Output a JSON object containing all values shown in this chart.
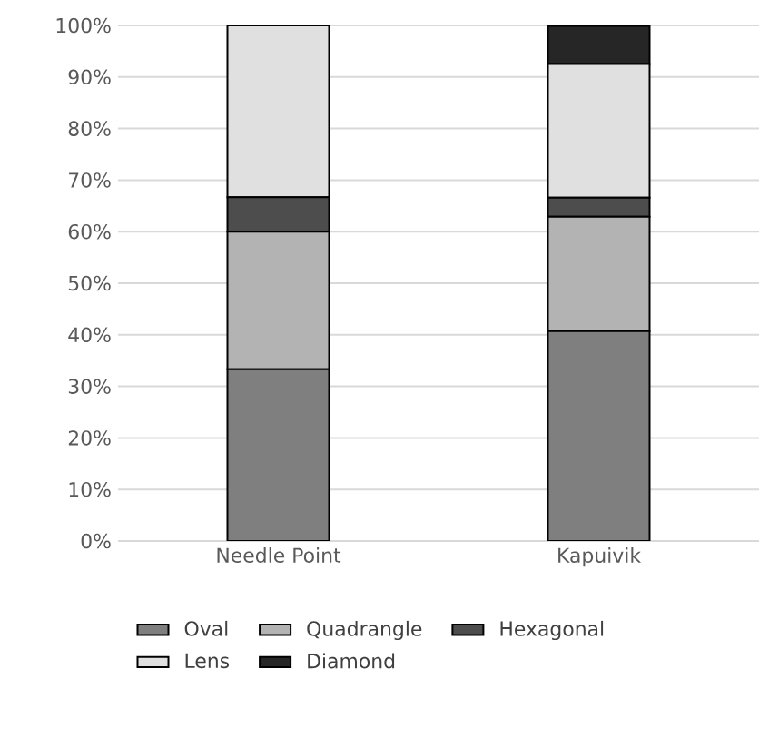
{
  "chart_data": {
    "type": "bar",
    "stacked": true,
    "categories": [
      "Needle Point",
      "Kapuivik"
    ],
    "series": [
      {
        "name": "Oval",
        "color": "#7f7f7f",
        "values": [
          33.3,
          40.7
        ]
      },
      {
        "name": "Quadrangle",
        "color": "#b3b3b3",
        "values": [
          26.7,
          22.2
        ]
      },
      {
        "name": "Hexagonal",
        "color": "#4d4d4d",
        "values": [
          6.7,
          3.7
        ]
      },
      {
        "name": "Lens",
        "color": "#e0e0e0",
        "values": [
          33.3,
          25.9
        ]
      },
      {
        "name": "Diamond",
        "color": "#262626",
        "values": [
          0,
          7.4
        ]
      }
    ],
    "ylim": [
      0,
      100
    ],
    "yticks": [
      {
        "value": 0,
        "label": "0%"
      },
      {
        "value": 10,
        "label": "10%"
      },
      {
        "value": 20,
        "label": "20%"
      },
      {
        "value": 30,
        "label": "30%"
      },
      {
        "value": 40,
        "label": "40%"
      },
      {
        "value": 50,
        "label": "50%"
      },
      {
        "value": 60,
        "label": "60%"
      },
      {
        "value": 70,
        "label": "70%"
      },
      {
        "value": 80,
        "label": "80%"
      },
      {
        "value": 90,
        "label": "90%"
      },
      {
        "value": 100,
        "label": "100%"
      }
    ],
    "grid": "y",
    "legend": "bottom"
  }
}
